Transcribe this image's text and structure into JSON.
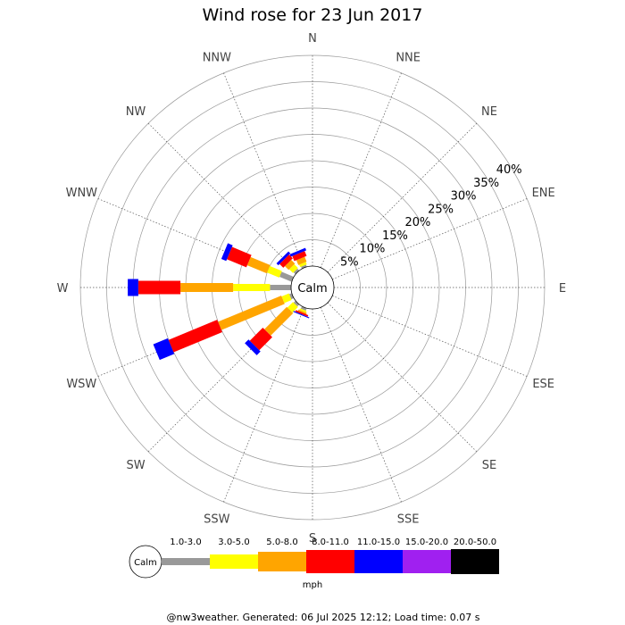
{
  "chart_data": {
    "type": "wind-rose",
    "title": "Wind rose for 23 Jun 2017",
    "directions": [
      "N",
      "NNE",
      "NE",
      "ENE",
      "E",
      "ESE",
      "SE",
      "SSE",
      "S",
      "SSW",
      "SW",
      "WSW",
      "W",
      "WNW",
      "NW",
      "NNW"
    ],
    "ring_labels": [
      "5%",
      "10%",
      "15%",
      "20%",
      "25%",
      "30%",
      "35%",
      "40%"
    ],
    "ring_values": [
      5,
      10,
      15,
      20,
      25,
      30,
      35,
      40
    ],
    "rmax": 40,
    "calm_label": "Calm",
    "unit": "mph",
    "bins": [
      {
        "label": "1.0-3.0",
        "color": "#999999"
      },
      {
        "label": "3.0-5.0",
        "color": "#ffff00"
      },
      {
        "label": "5.0-8.0",
        "color": "#ffa500"
      },
      {
        "label": "8.0-11.0",
        "color": "#ff0000"
      },
      {
        "label": "11.0-15.0",
        "color": "#0000ff"
      },
      {
        "label": "15.0-20.0",
        "color": "#a020f0"
      },
      {
        "label": "20.0-50.0",
        "color": "#000000"
      }
    ],
    "series": [
      {
        "direction": "NNW",
        "values": [
          0.4,
          0.5,
          1.0,
          1.0,
          0.5,
          0,
          0
        ]
      },
      {
        "direction": "NW",
        "values": [
          0.5,
          1.0,
          1.0,
          1.0,
          0.5,
          0,
          0
        ]
      },
      {
        "direction": "WNW",
        "values": [
          2.5,
          2.5,
          4.0,
          4.0,
          1.0,
          0,
          0
        ]
      },
      {
        "direction": "W",
        "values": [
          4.0,
          7.0,
          10.0,
          8.0,
          2.0,
          0,
          0
        ]
      },
      {
        "direction": "WSW",
        "values": [
          0.5,
          1.5,
          13.0,
          10.0,
          3.0,
          0,
          0
        ]
      },
      {
        "direction": "SW",
        "values": [
          0.5,
          1.5,
          6.0,
          3.5,
          1.0,
          0,
          0
        ]
      },
      {
        "direction": "SSW",
        "values": [
          0.5,
          0.3,
          0.3,
          0.3,
          0.2,
          0,
          0
        ]
      }
    ]
  },
  "footer": "@nw3weather. Generated: 06 Jul 2025 12:12; Load time: 0.07 s"
}
